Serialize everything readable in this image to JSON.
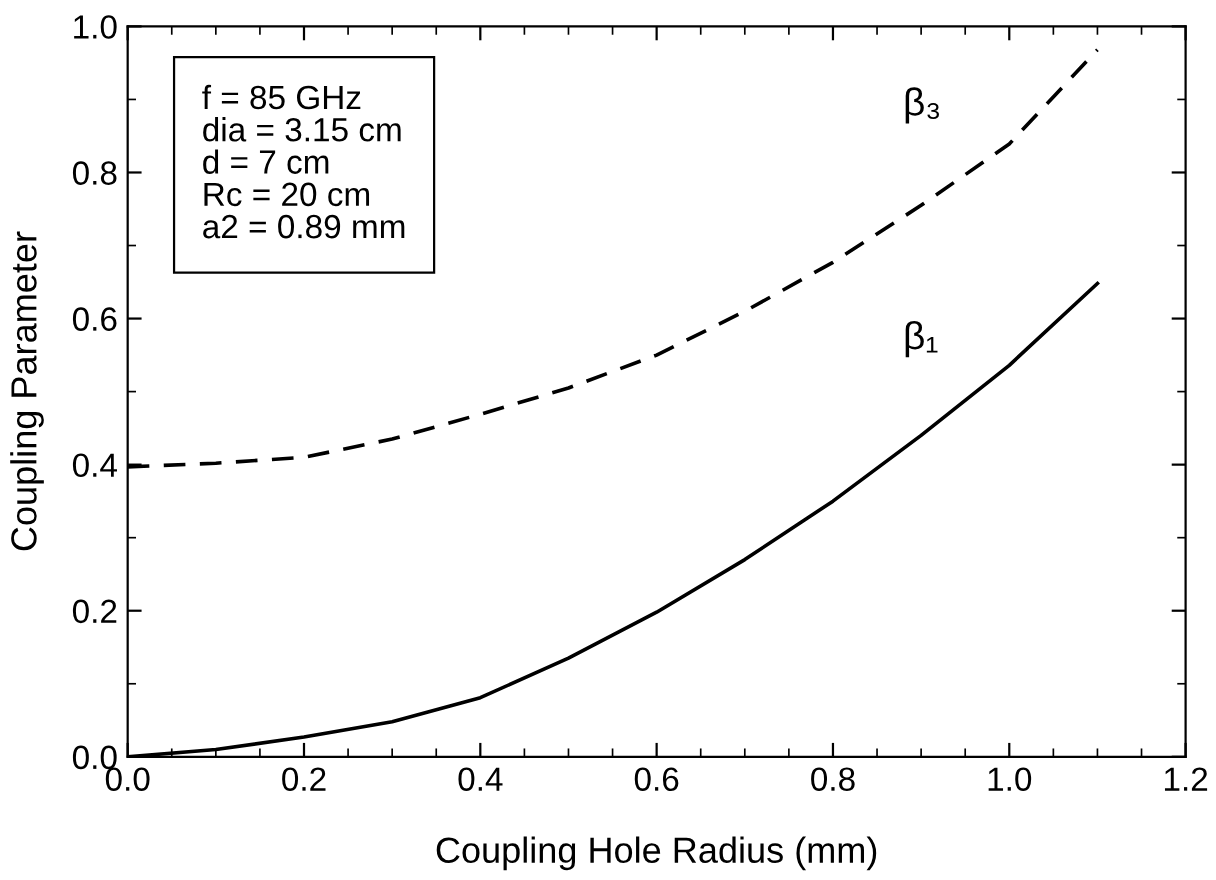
{
  "chart_data": {
    "type": "line",
    "xlabel": "Coupling Hole Radius (mm)",
    "ylabel": "Coupling Parameter",
    "annotations": [
      "f = 85 GHz\ndia = 3.15 cm\nd = 7 cm\nRc = 20 cm\na2 = 0.89 mm"
    ],
    "series": [
      {
        "name": "β₃",
        "color": "#000000",
        "line_style": "dashed",
        "x": [
          0,
          0.1,
          0.2,
          0.3,
          0.4,
          0.5,
          0.6,
          0.7,
          0.8,
          0.9,
          1.0,
          1.1
        ],
        "values": [
          0.397,
          0.402,
          0.41,
          0.435,
          0.469,
          0.505,
          0.55,
          0.61,
          0.677,
          0.755,
          0.839,
          0.968
        ]
      },
      {
        "name": "β₁",
        "color": "#000000",
        "line_style": "solid",
        "x": [
          0,
          0.1,
          0.2,
          0.3,
          0.4,
          0.5,
          0.6,
          0.7,
          0.8,
          0.9,
          1.0,
          1.1
        ],
        "values": [
          0,
          0.01,
          0.027,
          0.048,
          0.081,
          0.135,
          0.198,
          0.27,
          0.35,
          0.44,
          0.536,
          0.648
        ]
      }
    ],
    "xlim": [
      0,
      1.2
    ],
    "ylim": [
      0,
      1.0
    ],
    "xticks": [
      {
        "value": 0,
        "label": "0.0"
      },
      0.2,
      0.4,
      0.6,
      0.8,
      {
        "value": 1.0,
        "label": "1.0"
      },
      1.2
    ],
    "yticks": [
      {
        "value": 0,
        "label": "0.0"
      },
      0.2,
      0.4,
      0.6,
      0.8,
      {
        "value": 1.0,
        "label": "1.0"
      }
    ],
    "grid": false,
    "legend": false
  }
}
